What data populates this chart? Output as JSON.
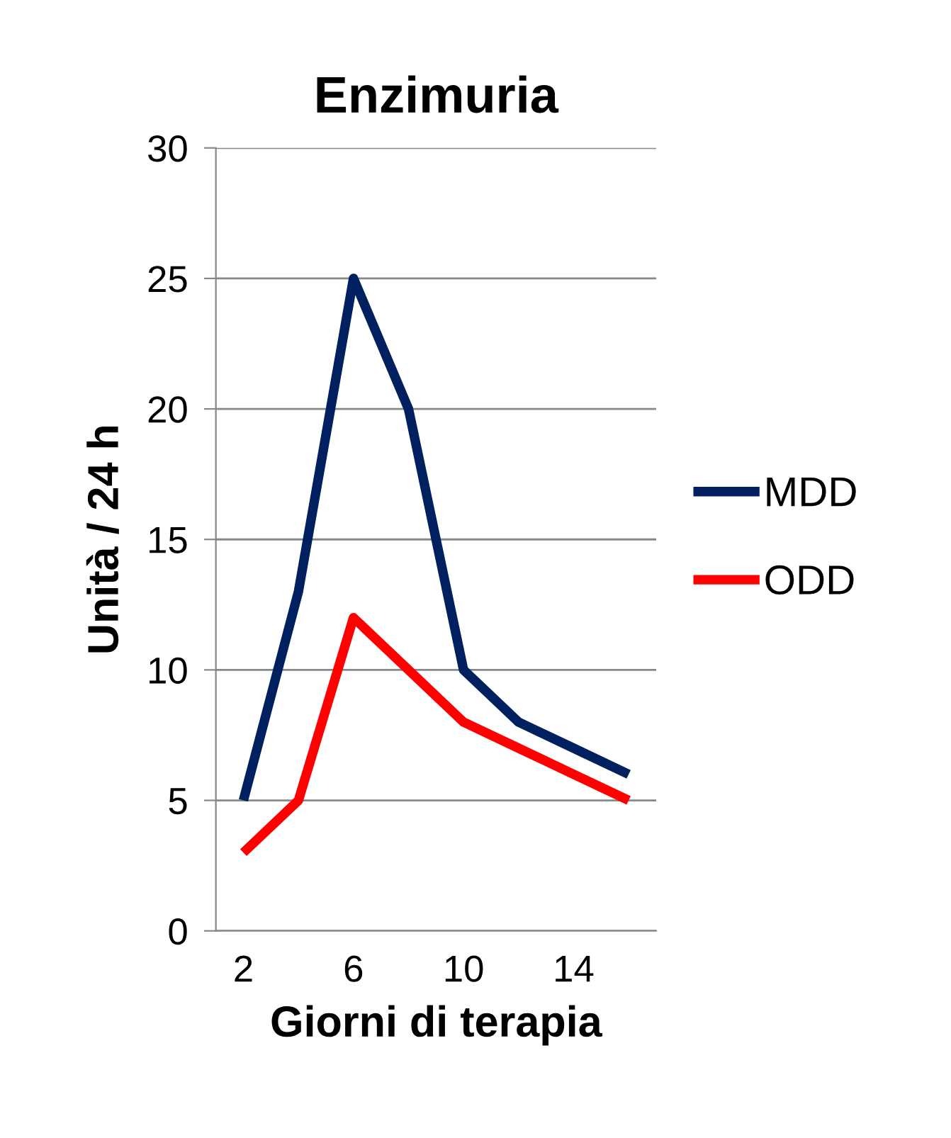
{
  "chart_data": {
    "type": "line",
    "title": "Enzimuria",
    "xlabel": "Giorni di terapia",
    "ylabel": "Unità / 24 h",
    "categories": [
      "2",
      null,
      "6",
      null,
      "10",
      null,
      "14",
      null
    ],
    "series": [
      {
        "name": "MDD",
        "color": "#002060",
        "values": [
          5,
          13,
          25,
          20,
          10,
          8,
          7,
          6
        ]
      },
      {
        "name": "ODD",
        "color": "#ff0000",
        "values": [
          3,
          5,
          12,
          10,
          8,
          7,
          6,
          5
        ]
      }
    ],
    "ylim": [
      0,
      30
    ],
    "yticks": [
      0,
      5,
      10,
      15,
      20,
      25,
      30
    ],
    "grid": "y",
    "legend": "right",
    "marker": "none",
    "line_style": "solid"
  }
}
